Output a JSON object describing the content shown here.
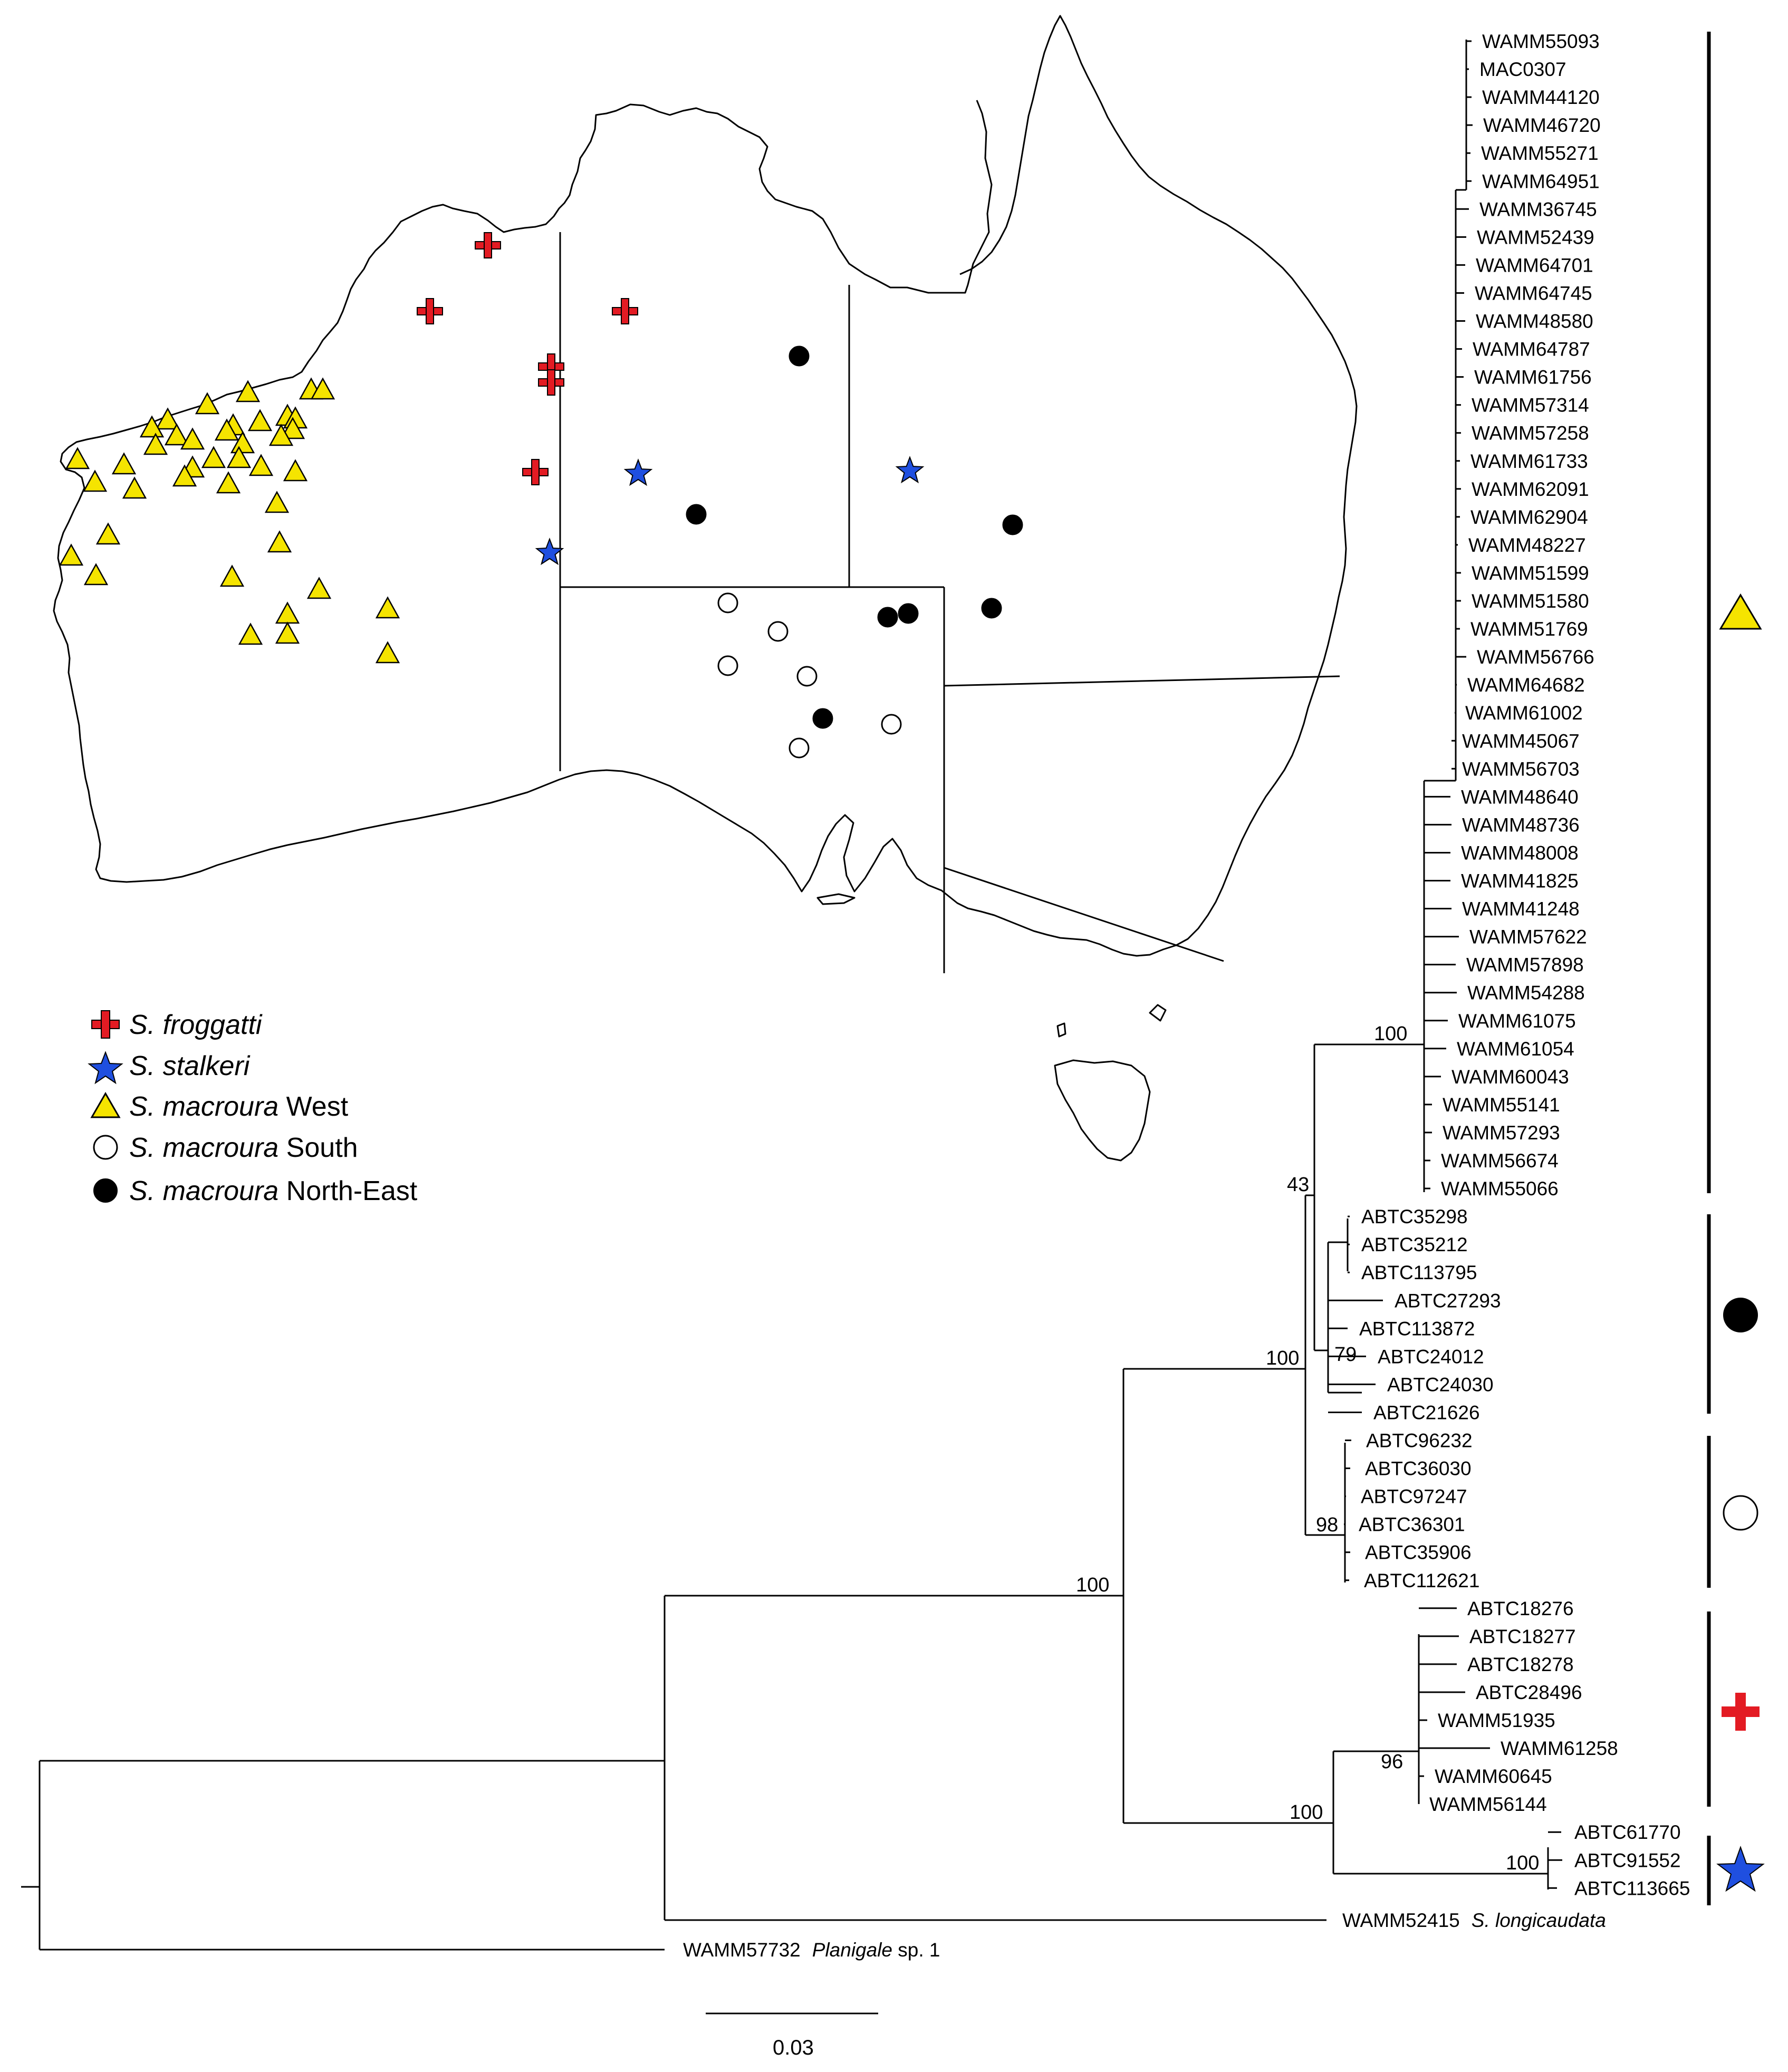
{
  "legend": {
    "froggatti": {
      "italic": "S. froggatti",
      "plain": ""
    },
    "stalkeri": {
      "italic": "S. stalkeri",
      "plain": ""
    },
    "macroura_west": {
      "italic": "S. macroura",
      "plain": " West"
    },
    "macroura_south": {
      "italic": "S. macroura",
      "plain": " South"
    },
    "macroura_northeast": {
      "italic": "S. macroura",
      "plain": " North-East"
    }
  },
  "clades": {
    "west": [
      "WAMM55093",
      "MAC0307",
      "WAMM44120",
      "WAMM46720",
      "WAMM55271",
      "WAMM64951",
      "WAMM36745",
      "WAMM52439",
      "WAMM64701",
      "WAMM64745",
      "WAMM48580",
      "WAMM64787",
      "WAMM61756",
      "WAMM57314",
      "WAMM57258",
      "WAMM61733",
      "WAMM62091",
      "WAMM62904",
      "WAMM48227",
      "WAMM51599",
      "WAMM51580",
      "WAMM51769",
      "WAMM56766",
      "WAMM64682",
      "WAMM61002",
      "WAMM45067",
      "WAMM56703",
      "WAMM48640",
      "WAMM48736",
      "WAMM48008",
      "WAMM41825",
      "WAMM41248",
      "WAMM57622",
      "WAMM57898",
      "WAMM54288",
      "WAMM61075",
      "WAMM61054",
      "WAMM60043",
      "WAMM55141",
      "WAMM57293",
      "WAMM56674",
      "WAMM55066"
    ],
    "northeast": [
      "ABTC35298",
      "ABTC35212",
      "ABTC113795",
      "ABTC27293",
      "ABTC113872",
      "ABTC24012",
      "ABTC24030",
      "ABTC21626"
    ],
    "south": [
      "ABTC96232",
      "ABTC36030",
      "ABTC97247",
      "ABTC36301",
      "ABTC35906",
      "ABTC112621"
    ],
    "froggatti": [
      "ABTC18276",
      "ABTC18277",
      "ABTC18278",
      "ABTC28496",
      "WAMM51935",
      "WAMM61258",
      "WAMM60645",
      "WAMM56144"
    ],
    "stalkeri": [
      "ABTC61770",
      "ABTC91552",
      "ABTC113665"
    ]
  },
  "outgroups": {
    "longicaudata": {
      "id": "WAMM52415",
      "species": "S. longicaudata"
    },
    "planigale": {
      "id": "WAMM57732",
      "genus": "Planigale",
      "rest": " sp. 1"
    }
  },
  "support": {
    "west": "100",
    "west_ne": "43",
    "ne_sub": "79",
    "macroura": "100",
    "south": "98",
    "ingroup": "100",
    "froggatti": "96",
    "frog_stalk": "100",
    "stalkeri": "100"
  },
  "scale_bar": {
    "label": "0.03",
    "value": 0.03
  },
  "colors": {
    "froggatti": "#e31b23",
    "stalkeri": "#1f4fe0",
    "west": "#f5e400",
    "south": "#ffffff",
    "northeast": "#000000"
  }
}
